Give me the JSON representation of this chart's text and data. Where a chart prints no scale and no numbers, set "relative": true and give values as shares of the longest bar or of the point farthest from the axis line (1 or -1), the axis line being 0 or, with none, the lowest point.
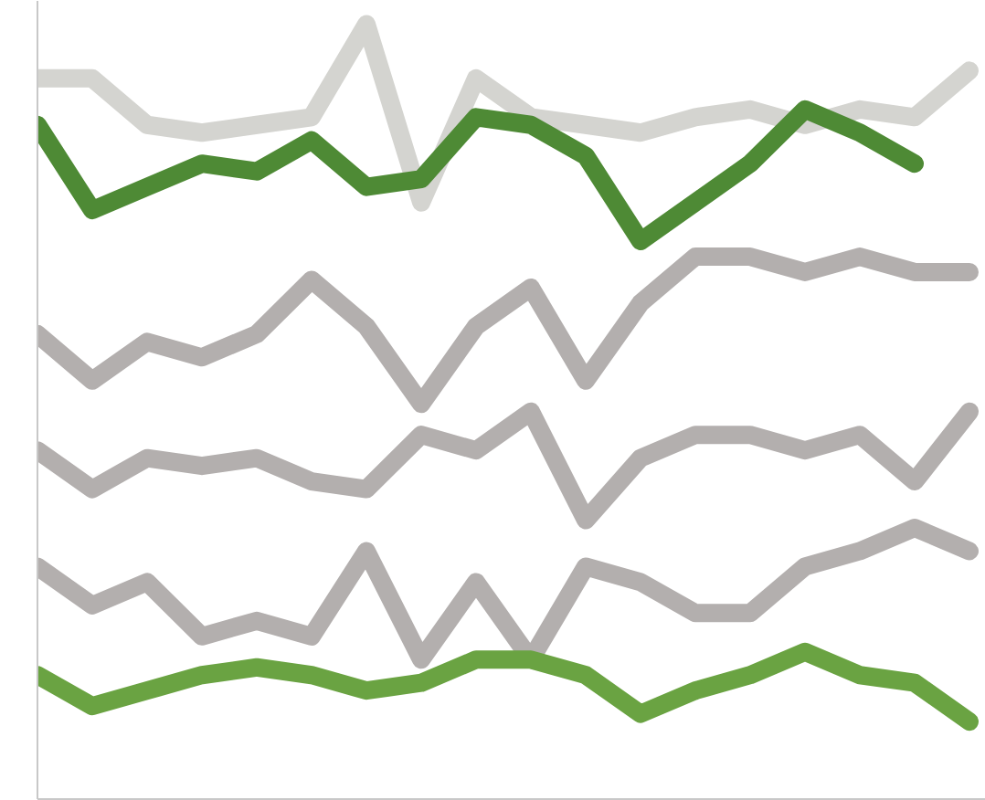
{
  "chart_data": {
    "type": "line",
    "relative": true,
    "marker": "none",
    "line_style": "solid",
    "categories": [
      null,
      null,
      null,
      null,
      null,
      null,
      null,
      null,
      null,
      null,
      null,
      null,
      null,
      null,
      null,
      null,
      null,
      null
    ],
    "series": [
      {
        "color": "#d4d4d0",
        "values": [
          0.93,
          0.93,
          0.87,
          0.86,
          0.87,
          0.88,
          1.0,
          0.77,
          0.93,
          0.88,
          0.87,
          0.86,
          0.88,
          0.89,
          0.87,
          0.89,
          0.88,
          0.94
        ]
      },
      {
        "color": "#4e8a35",
        "values": [
          0.87,
          0.76,
          0.79,
          0.82,
          0.81,
          0.85,
          0.79,
          0.8,
          0.88,
          0.87,
          0.83,
          0.72,
          0.77,
          0.82,
          0.89,
          0.86,
          0.82,
          null
        ]
      },
      {
        "color": "#b3afae",
        "values": [
          0.6,
          0.54,
          0.59,
          0.57,
          0.6,
          0.67,
          0.61,
          0.51,
          0.61,
          0.66,
          0.54,
          0.64,
          0.7,
          0.7,
          0.68,
          0.7,
          0.68,
          0.68
        ]
      },
      {
        "color": "#b3afae",
        "values": [
          0.45,
          0.4,
          0.44,
          0.43,
          0.44,
          0.41,
          0.4,
          0.47,
          0.45,
          0.5,
          0.36,
          0.44,
          0.47,
          0.47,
          0.45,
          0.47,
          0.41,
          0.5
        ]
      },
      {
        "color": "#b3afae",
        "values": [
          0.3,
          0.25,
          0.28,
          0.21,
          0.23,
          0.21,
          0.32,
          0.18,
          0.28,
          0.18,
          0.3,
          0.28,
          0.24,
          0.24,
          0.3,
          0.32,
          0.35,
          0.32
        ]
      },
      {
        "color": "#6aa342",
        "values": [
          0.16,
          0.12,
          0.14,
          0.16,
          0.17,
          0.16,
          0.14,
          0.15,
          0.18,
          0.18,
          0.16,
          0.11,
          0.14,
          0.16,
          0.19,
          0.16,
          0.15,
          0.1
        ]
      }
    ]
  }
}
